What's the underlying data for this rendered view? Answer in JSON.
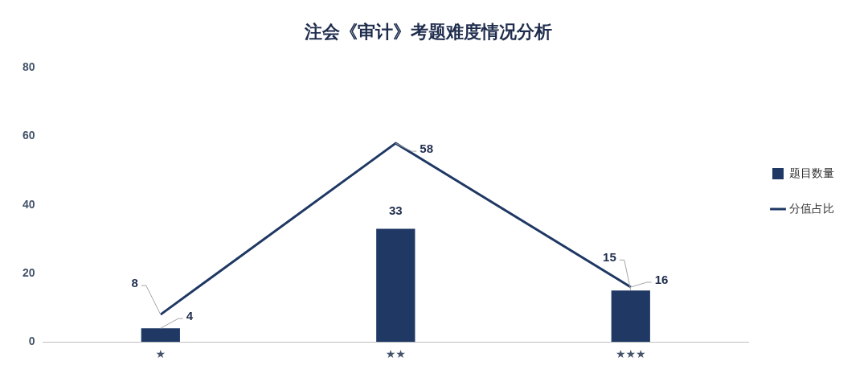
{
  "chart_data": {
    "type": "bar",
    "title": "注会《审计》考题难度情况分析",
    "categories": [
      "★",
      "★★",
      "★★★"
    ],
    "series": [
      {
        "name": "题目数量",
        "color": "#1f3864",
        "values": [
          4,
          33,
          15
        ]
      },
      {
        "name": "分值占比",
        "type": "line",
        "color": "#1f3864",
        "values": [
          8,
          58,
          16
        ]
      }
    ],
    "ylim": [
      0,
      80
    ],
    "yticks": [
      0,
      20,
      40,
      60,
      80
    ],
    "grid": false,
    "legend": "right",
    "marker": "none",
    "line_style": "solid",
    "data_labels": true
  }
}
